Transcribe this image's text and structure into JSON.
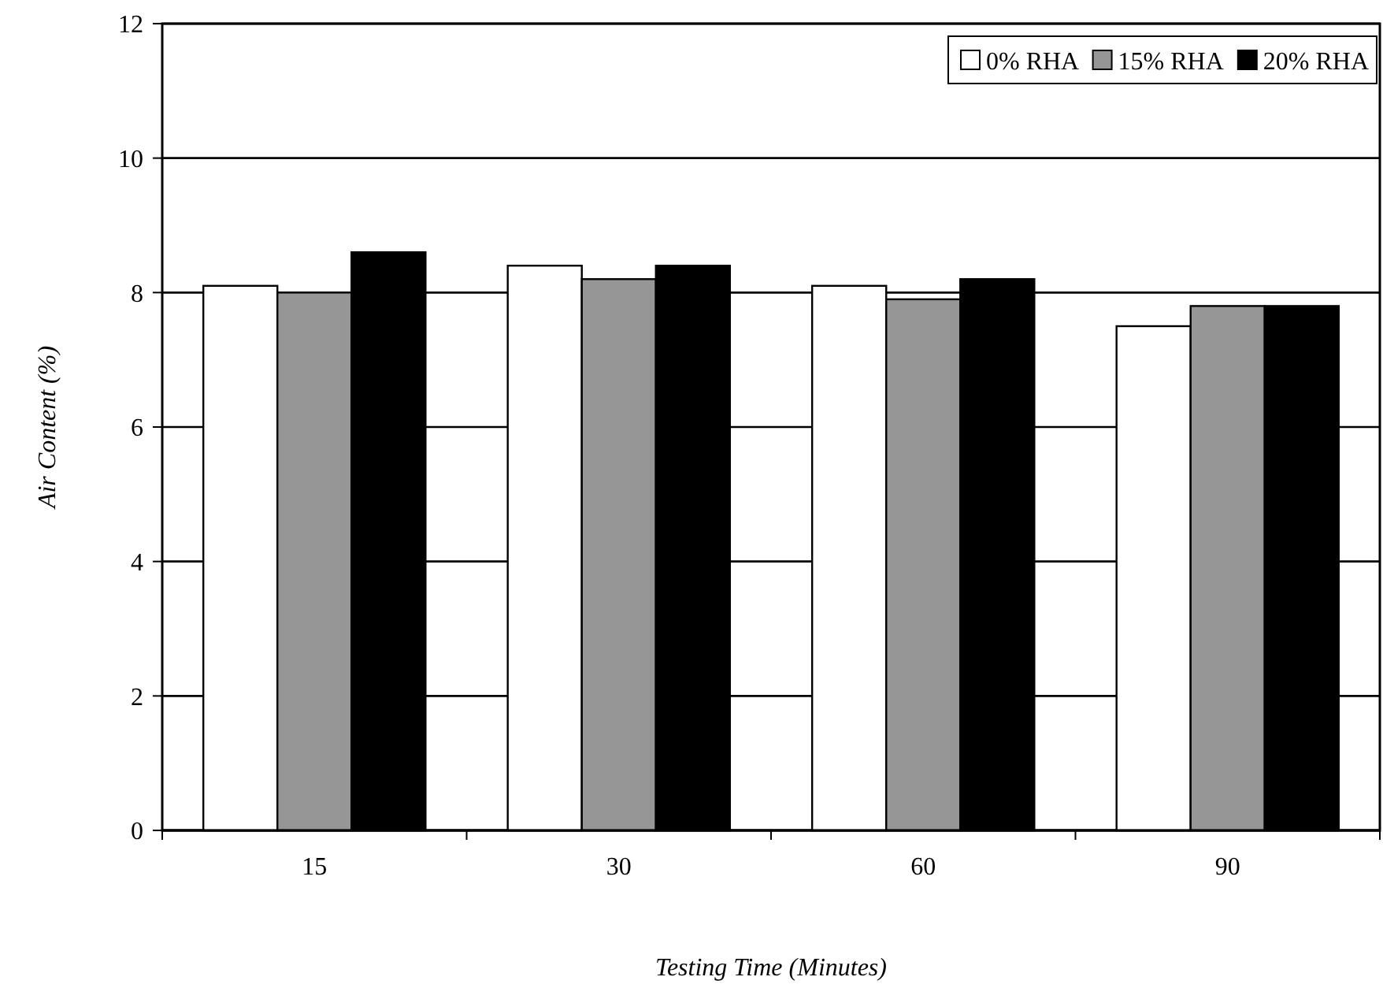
{
  "chart_data": {
    "type": "bar",
    "xlabel": "Testing Time (Minutes)",
    "ylabel": "Air Content (%)",
    "categories": [
      "15",
      "30",
      "60",
      "90"
    ],
    "series": [
      {
        "name": "0% RHA",
        "color": "#ffffff",
        "values": [
          8.1,
          8.4,
          8.1,
          7.5
        ]
      },
      {
        "name": "15% RHA",
        "color": "#969696",
        "values": [
          8.0,
          8.2,
          7.9,
          7.8
        ]
      },
      {
        "name": "20% RHA",
        "color": "#000000",
        "values": [
          8.6,
          8.4,
          8.2,
          7.8
        ]
      }
    ],
    "ylim": [
      0,
      12
    ],
    "yticks": [
      0,
      2,
      4,
      6,
      8,
      10,
      12
    ],
    "grid": "y",
    "legend": "top right"
  }
}
